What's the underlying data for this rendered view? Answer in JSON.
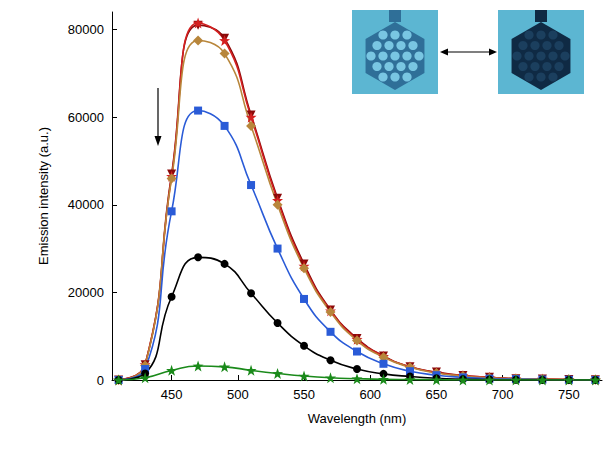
{
  "chart_data": {
    "type": "line",
    "x_label": "Wavelength (nm)",
    "y_label": "Emission intensity (a.u.)",
    "x": [
      410,
      430,
      450,
      470,
      490,
      510,
      530,
      550,
      570,
      590,
      610,
      630,
      650,
      670,
      690,
      710,
      730,
      750,
      770
    ],
    "xlim": [
      405,
      775
    ],
    "xticks": [
      450,
      500,
      550,
      600,
      650,
      700,
      750
    ],
    "ylim": [
      0,
      84000
    ],
    "yticks": [
      0,
      20000,
      40000,
      60000,
      80000
    ],
    "grid": false,
    "series": [
      {
        "color": "#8b0a0a",
        "marker": "triangle_down",
        "values": [
          0,
          3500,
          47000,
          81000,
          78000,
          60500,
          41500,
          26500,
          16000,
          9500,
          5500,
          3000,
          1800,
          1000,
          600,
          300,
          200,
          100,
          50
        ]
      },
      {
        "color": "#d42020",
        "marker": "star",
        "values": [
          0,
          3500,
          46500,
          81500,
          77500,
          60000,
          41000,
          26000,
          15800,
          9300,
          5400,
          3000,
          1700,
          1000,
          600,
          300,
          200,
          100,
          50
        ]
      },
      {
        "color": "#b8863b",
        "marker": "diamond",
        "values": [
          0,
          3300,
          46000,
          77500,
          74500,
          58000,
          40000,
          25500,
          15500,
          9000,
          5200,
          2900,
          1600,
          900,
          500,
          300,
          150,
          100,
          50
        ]
      },
      {
        "color": "#2a5bd7",
        "marker": "square",
        "values": [
          0,
          2500,
          38500,
          61500,
          58000,
          44500,
          30000,
          18500,
          11000,
          6500,
          3700,
          2000,
          1100,
          600,
          300,
          200,
          100,
          50,
          0
        ]
      },
      {
        "color": "#000000",
        "marker": "circle",
        "values": [
          0,
          1500,
          19000,
          28000,
          26500,
          19800,
          13000,
          7800,
          4500,
          2500,
          1400,
          800,
          400,
          200,
          100,
          50,
          0,
          0,
          0
        ]
      },
      {
        "color": "#1a8a1a",
        "marker": "star",
        "values": [
          0,
          500,
          2200,
          3200,
          3000,
          2200,
          1500,
          900,
          500,
          300,
          150,
          100,
          50,
          0,
          0,
          0,
          0,
          0,
          0
        ]
      }
    ]
  }
}
